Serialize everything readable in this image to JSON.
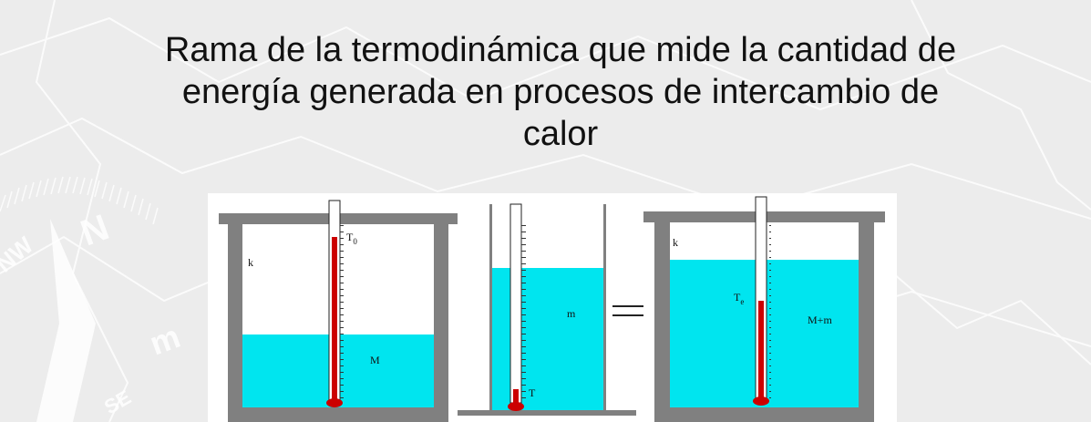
{
  "slide": {
    "title_line1": "Rama de la termodinámica que mide la cantidad de",
    "title_line2": "energía generada en procesos de intercambio de",
    "title_line3": "calor"
  },
  "diagram": {
    "vessel1": {
      "wall_label": "k",
      "liquid_label": "M",
      "thermo_label": "T",
      "thermo_sub": "0"
    },
    "vessel2": {
      "liquid_label": "m",
      "thermo_label": "T"
    },
    "vessel3": {
      "wall_label": "k",
      "liquid_label": "M+m",
      "thermo_label": "T",
      "thermo_sub": "e"
    },
    "colors": {
      "water": "#00e5ef",
      "mercury": "#cc0000",
      "wall": "#808080"
    }
  }
}
